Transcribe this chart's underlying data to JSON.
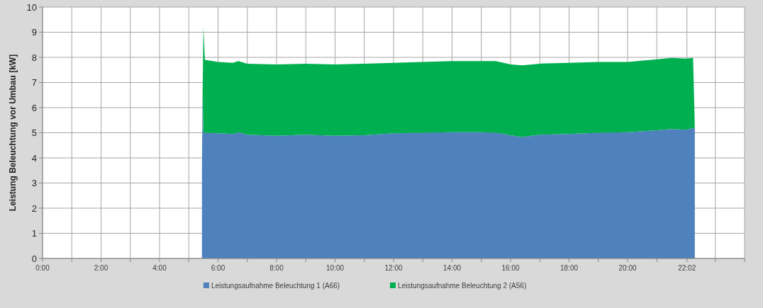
{
  "chart_data": {
    "type": "area",
    "stacked": true,
    "ylabel": "Leistung Beleuchtung vor Umbau [kW]",
    "x": [
      5.45,
      5.47,
      5.5,
      5.55,
      6,
      6.5,
      6.7,
      7,
      8,
      9,
      10,
      11,
      12,
      13,
      14,
      15,
      15.5,
      16,
      16.4,
      17,
      18,
      19,
      20,
      21,
      21.5,
      22,
      22.24,
      22.3
    ],
    "series": [
      {
        "name": "Leistungsaufnahme Beleuchtung 1 (A66)",
        "color": "#4f81bd",
        "values": [
          3.65,
          6.45,
          5.0,
          5.0,
          4.98,
          4.95,
          5.02,
          4.92,
          4.88,
          4.92,
          4.88,
          4.9,
          4.98,
          5.0,
          5.02,
          5.02,
          5.0,
          4.9,
          4.83,
          4.92,
          4.95,
          5.0,
          5.02,
          5.1,
          5.15,
          5.12,
          5.18,
          5.2
        ]
      },
      {
        "name": "Leistungsaufnahme Beleuchtung 2 (A56)",
        "color": "#00b050",
        "values": [
          0,
          0,
          4.2,
          2.9,
          2.84,
          2.83,
          2.83,
          2.83,
          2.84,
          2.83,
          2.84,
          2.85,
          2.8,
          2.82,
          2.83,
          2.83,
          2.85,
          2.82,
          2.85,
          2.83,
          2.83,
          2.82,
          2.8,
          2.82,
          2.83,
          2.83,
          2.8,
          0
        ]
      }
    ],
    "xlim": [
      0,
      24
    ],
    "xticks": [
      {
        "value": 0,
        "label": "0:00"
      },
      {
        "value": 1,
        "label": null
      },
      {
        "value": 2,
        "label": "2:00"
      },
      {
        "value": 3,
        "label": null
      },
      {
        "value": 4,
        "label": "4:00"
      },
      {
        "value": 5,
        "label": null
      },
      {
        "value": 6,
        "label": "6:00"
      },
      {
        "value": 7,
        "label": null
      },
      {
        "value": 8,
        "label": "8:00"
      },
      {
        "value": 9,
        "label": null
      },
      {
        "value": 10,
        "label": "10:00"
      },
      {
        "value": 11,
        "label": null
      },
      {
        "value": 12,
        "label": "12:00"
      },
      {
        "value": 13,
        "label": null
      },
      {
        "value": 14,
        "label": "14:00"
      },
      {
        "value": 15,
        "label": null
      },
      {
        "value": 16,
        "label": "16:00"
      },
      {
        "value": 17,
        "label": null
      },
      {
        "value": 18,
        "label": "18:00"
      },
      {
        "value": 19,
        "label": null
      },
      {
        "value": 20,
        "label": "20:00"
      },
      {
        "value": 21,
        "label": null
      },
      {
        "value": 22.03,
        "label": "22:02"
      },
      {
        "value": 23,
        "label": null
      },
      {
        "value": 24,
        "label": null
      }
    ],
    "ylim": [
      0,
      10
    ],
    "yticks": [
      0,
      1,
      2,
      3,
      4,
      5,
      6,
      7,
      8,
      9,
      10
    ],
    "grid": true,
    "legend": "bottom"
  }
}
